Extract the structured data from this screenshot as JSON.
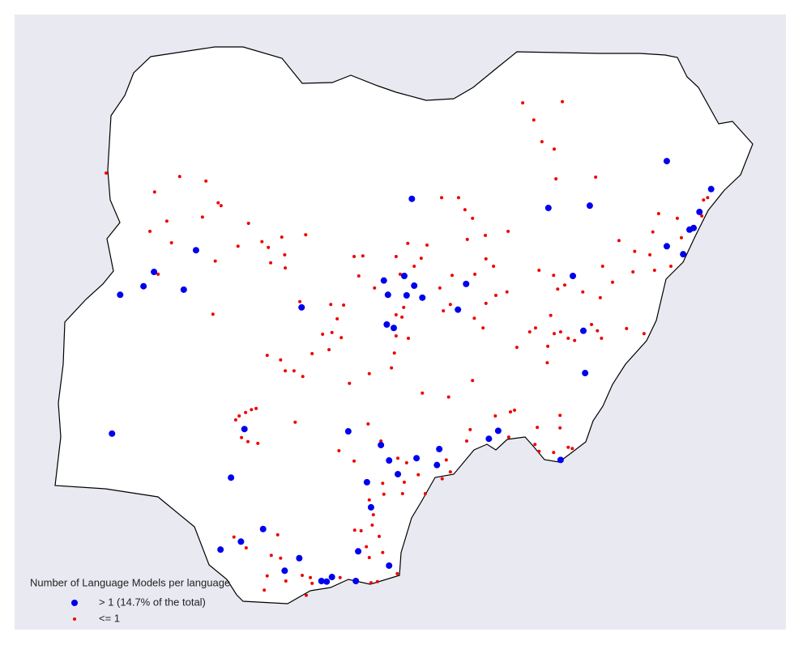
{
  "chart_data": {
    "type": "scatter",
    "legend_title": "Number of Language Models per language",
    "series": [
      {
        "name": "> 1 (14.7% of the total)",
        "color": "#0000ee",
        "x": [
          13.18,
          13.94,
          13.74,
          13.64,
          13.57,
          13.18,
          13.46,
          11.15,
          11.86,
          8.81,
          5.11,
          4.39,
          4.21,
          3.81,
          4.9,
          6.92,
          8.33,
          8.68,
          8.85,
          8.4,
          8.72,
          8.99,
          9.74,
          9.6,
          8.38,
          8.5,
          11.57,
          11.75,
          11.78,
          3.67,
          7.72,
          5.94,
          5.71,
          8.28,
          8.42,
          8.89,
          9.28,
          9.24,
          8.57,
          8.04,
          8.11,
          10.13,
          10.29,
          11.36,
          6.26,
          5.53,
          5.88,
          6.88,
          6.63,
          7.89,
          8.42,
          7.26,
          7.35,
          7.44,
          7.85
        ],
        "values": [
          12.03,
          11.54,
          11.14,
          10.86,
          10.83,
          10.54,
          10.4,
          11.21,
          11.25,
          11.37,
          10.47,
          10.09,
          9.84,
          9.69,
          9.78,
          9.47,
          9.94,
          10.02,
          9.85,
          9.69,
          9.68,
          9.64,
          9.88,
          9.43,
          9.17,
          9.11,
          10.02,
          9.06,
          8.32,
          7.26,
          7.3,
          7.34,
          6.49,
          7.06,
          6.79,
          6.83,
          6.99,
          6.71,
          6.55,
          6.41,
          5.97,
          7.17,
          7.31,
          6.8,
          5.59,
          5.23,
          5.37,
          5.08,
          4.86,
          5.2,
          4.95,
          4.68,
          4.67,
          4.75,
          4.68
        ]
      },
      {
        "name": "<= 1",
        "color": "#ee0000",
        "x": [
          3.57,
          10.71,
          11.39,
          10.9,
          11.04,
          11.25,
          11.28,
          11.96,
          4.83,
          5.28,
          4.4,
          5.49,
          5.54,
          4.61,
          5.22,
          4.32,
          4.69,
          4.46,
          5.44,
          5.83,
          6.01,
          6.24,
          6.35,
          6.58,
          6.99,
          6.63,
          6.39,
          6.64,
          5.4,
          6.89,
          7.42,
          7.64,
          7.53,
          7.44,
          7.6,
          7.82,
          7.97,
          7.9,
          8.17,
          8.54,
          8.61,
          8.74,
          8.85,
          8.97,
          9.07,
          9.32,
          9.61,
          9.72,
          9.85,
          10.07,
          9.76,
          10.08,
          10.21,
          9.89,
          9.5,
          9.29,
          9.47,
          9.35,
          9.88,
          10.03,
          10.08,
          10.25,
          10.46,
          10.44,
          8.54,
          8.64,
          8.67,
          8.54,
          8.75,
          8.51,
          8.46,
          8.08,
          7.74,
          7.28,
          7.1,
          7.39,
          6.64,
          6.33,
          6.56,
          6.79,
          6.94,
          8.99,
          9.44,
          9.85,
          10.99,
          11.24,
          11.31,
          11.43,
          11.74,
          12.04,
          12.08,
          12.36,
          12.63,
          12.89,
          12.94,
          13.04,
          13.36,
          13.43,
          13.25,
          12.97,
          12.6,
          12.25,
          10.83,
          10.93,
          11.19,
          11.36,
          11.49,
          11.25,
          11.6,
          11.89,
          11.99,
          12.06,
          12.49,
          12.79,
          10.61,
          11.13,
          11.14,
          13.81,
          13.88,
          13.78,
          6.06,
          6.14,
          5.96,
          5.85,
          5.79,
          5.89,
          6.0,
          6.17,
          6.81,
          8.06,
          7.56,
          7.82,
          8.28,
          8.31,
          8.33,
          8.57,
          8.72,
          8.68,
          8.65,
          8.92,
          9.04,
          8.08,
          8.15,
          7.83,
          7.94,
          8.13,
          8.03,
          8.08,
          8.31,
          8.25,
          5.76,
          5.97,
          6.51,
          6.4,
          6.56,
          6.33,
          6.65,
          6.93,
          7.1,
          6.28,
          7.0,
          7.58,
          8.22,
          8.56,
          8.11,
          7.07,
          9.75,
          9.81,
          10.47,
          10.5,
          10.24,
          10.92,
          10.99,
          11.24,
          11.49,
          11.56,
          11.35,
          11.35,
          10.96,
          10.57,
          9.4,
          9.47,
          9.33
        ],
        "values": [
          11.82,
          13.05,
          13.07,
          12.75,
          12.37,
          12.24,
          11.72,
          11.75,
          11.76,
          11.68,
          11.49,
          11.3,
          11.25,
          10.98,
          11.05,
          10.8,
          10.6,
          10.05,
          10.28,
          10.54,
          10.94,
          10.62,
          10.52,
          10.7,
          10.74,
          10.39,
          10.25,
          10.16,
          9.35,
          9.57,
          9.52,
          9.51,
          9.27,
          9.03,
          8.94,
          10.36,
          10.37,
          10.02,
          9.81,
          10.36,
          10.05,
          10.59,
          10.19,
          10.33,
          10.56,
          11.39,
          11.39,
          11.18,
          11.03,
          10.73,
          10.66,
          10.32,
          10.19,
          10.05,
          10.03,
          9.81,
          9.52,
          9.41,
          9.28,
          9.11,
          9.54,
          9.68,
          10.8,
          9.74,
          9.34,
          9.3,
          9.47,
          8.97,
          8.93,
          8.67,
          8.41,
          8.31,
          8.14,
          9.0,
          8.66,
          8.73,
          8.36,
          8.63,
          8.55,
          8.36,
          8.26,
          7.97,
          7.9,
          8.19,
          10.12,
          10.03,
          9.79,
          9.86,
          9.74,
          9.64,
          10.19,
          10.64,
          10.45,
          10.39,
          10.79,
          11.11,
          11.03,
          10.69,
          10.19,
          10.12,
          10.09,
          9.91,
          9.04,
          9.11,
          9.33,
          9.04,
          8.93,
          9.01,
          8.89,
          9.17,
          9.06,
          8.93,
          9.1,
          9.01,
          8.77,
          8.5,
          8.79,
          11.35,
          11.39,
          11.07,
          7.68,
          7.7,
          7.63,
          7.57,
          7.5,
          7.19,
          7.12,
          7.09,
          7.46,
          7.43,
          6.96,
          6.78,
          7.13,
          6.39,
          6.2,
          6.83,
          6.75,
          6.41,
          6.21,
          6.54,
          6.21,
          6.1,
          5.84,
          5.57,
          5.56,
          5.66,
          5.28,
          5.09,
          5.18,
          5.46,
          5.45,
          5.26,
          5.49,
          5.13,
          5.08,
          4.77,
          4.68,
          4.78,
          4.64,
          4.52,
          4.43,
          4.74,
          4.67,
          4.81,
          4.65,
          4.74,
          7.13,
          7.33,
          7.2,
          7.64,
          7.57,
          7.07,
          6.95,
          6.93,
          7.02,
          7.0,
          7.36,
          7.58,
          7.37,
          7.67,
          6.8,
          6.59,
          6.47
        ]
      }
    ]
  }
}
